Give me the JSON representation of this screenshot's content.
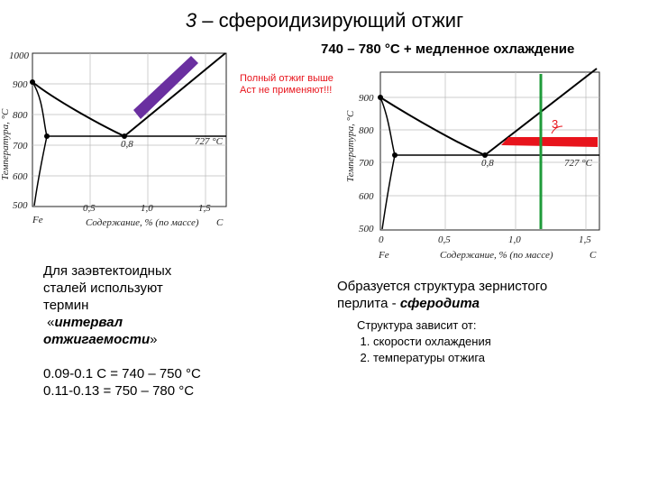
{
  "title": {
    "prefix": "3",
    "dash": " – ",
    "text": "сфероидизирующий отжиг"
  },
  "subtitle": "740 – 780 °C  + медленное охлаждение",
  "diagram_left": {
    "y_ticks": [
      "1000",
      "900",
      "800",
      "700",
      "600",
      "500"
    ],
    "x_ticks": [
      "0,5",
      "1,0",
      "1,5"
    ],
    "x_start": "Fe",
    "x_end": "C",
    "x_label": "Содержание, % (по массе)",
    "y_label": "Температура, °С",
    "point_label": "0,8",
    "temp_label": "727 °С",
    "annotation_line1": "Полный отжиг выше",
    "annotation_line2": "Аст не применяют!!!"
  },
  "diagram_right": {
    "y_ticks": [
      "900",
      "800",
      "700",
      "600",
      "500"
    ],
    "x_ticks": [
      "0,5",
      "1,0",
      "1,5"
    ],
    "x_start": "0",
    "x_fe": "Fe",
    "x_end": "C",
    "x_label": "Содержание, % (по массе)",
    "y_label": "Температура, °С",
    "point_label": "0,8",
    "temp_label": "727 °С",
    "region_label": "3"
  },
  "left_text": {
    "line1": "Для заэвтектоидных",
    "line2": "сталей используют",
    "line3": "термин",
    "term_open": "«",
    "term_line1": "интервал",
    "term_line2": "отжигаемости",
    "term_close": "»",
    "range1": "0.09-0.1 С = 740 – 750 °C",
    "range2": "0.11-0.13 = 750 – 780 °C"
  },
  "right_text": {
    "line1": "Образуется структура зернистого",
    "line2_prefix": "перлита - ",
    "line2_emph": "сферодита"
  },
  "structure": {
    "heading": "Структура зависит от:",
    "items": [
      "скорости охлаждения",
      "температуры отжига"
    ]
  },
  "colors": {
    "annotation_red": "#e8141c",
    "purple_band": "#6a2fa0",
    "green_line": "#1f9b3a"
  }
}
